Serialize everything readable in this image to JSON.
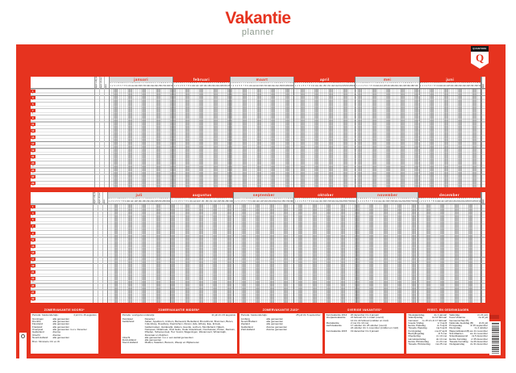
{
  "header": {
    "title": "Vakantie",
    "subtitle": "planner"
  },
  "brand": {
    "name": "QUANTORE",
    "monogram": "Q"
  },
  "colors": {
    "red": "#e6331f",
    "band_gray": "#d9d9d9",
    "weekend_gray": "#c6c6c6",
    "subtitle_green": "#8d998d"
  },
  "calendar": {
    "row_pairs_per_half": 15,
    "first_weekday_index": 3,
    "weekday_letters": [
      "m",
      "d",
      "w",
      "d",
      "v",
      "z",
      "z"
    ],
    "side_columns": [
      "dagen vorig jaar",
      "dagen dit jaar",
      "saldo"
    ],
    "total_column_label": "totaal",
    "halves": [
      {
        "months": [
          {
            "name": "januari",
            "days": 31,
            "band": "light"
          },
          {
            "name": "februari",
            "days": 28,
            "band": "red"
          },
          {
            "name": "maart",
            "days": 31,
            "band": "light"
          },
          {
            "name": "april",
            "days": 30,
            "band": "red"
          },
          {
            "name": "mei",
            "days": 31,
            "band": "light"
          },
          {
            "name": "juni",
            "days": 30,
            "band": "red"
          }
        ]
      },
      {
        "months": [
          {
            "name": "juli",
            "days": 31,
            "band": "light"
          },
          {
            "name": "augustus",
            "days": 31,
            "band": "red"
          },
          {
            "name": "september",
            "days": 30,
            "band": "light"
          },
          {
            "name": "oktober",
            "days": 31,
            "band": "red"
          },
          {
            "name": "november",
            "days": 30,
            "band": "light"
          },
          {
            "name": "december",
            "days": 31,
            "band": "red"
          }
        ]
      }
    ]
  },
  "panels": {
    "noord": {
      "title": "ZOMERVAKANTIE NOORD*",
      "period_label": "Periode:",
      "period_sub": "basisonderwijs:",
      "period_value": "4 juli t/m 16 augustus",
      "regions": [
        [
          "Groningen",
          "alle gemeenten"
        ],
        [
          "Drenthe",
          "alle gemeenten"
        ],
        [
          "Flevoland",
          "alle gemeenten"
        ],
        [
          "Friesland",
          "alle gemeenten"
        ],
        [
          "Overijssel",
          "alle gemeenten m.u.v. Deventer"
        ],
        [
          "Gelderland",
          "diverse"
        ],
        [
          "Utrecht",
          "diverse"
        ],
        [
          "Noord-Holland",
          "alle gemeenten"
        ]
      ],
      "footnote": "Bron: Ministerie OC en W"
    },
    "midden": {
      "title": "ZOMERVAKANTIE MIDDEN*",
      "period_label": "Periode:",
      "period_sub": "voortgezet onderwijs:",
      "period_value": "11 juli t/m 23 augustus",
      "regions": [
        [
          "Overijssel",
          "Deventer"
        ],
        [
          "Gelderland",
          "Aalten, Apeldoorn, Arnhem, Barneveld, Berkelland, Bronckhorst, Brummen, Buren, Culemborg, Doesburg, Doetinchem, Duiven, Ede, Elburg, Epe, Ermelo, Geldermalsen, Harderwijk, Hattem, Heerde, Lochem, Montferland, Nijkerk, Nunspeet, Oldebroek, Oost Gelre, Oude IJsselstreek, Overbetuwe, Putten, Renkum, Rheden, Scherpenzeel, Tiel, Voorst, Wageningen, Westervoort, Winterswijk, Zevenaar en Zutphen"
        ],
        [
          "Utrecht",
          "alle gemeenten m.u.v. een aantal gemeenten"
        ],
        [
          "Zuid-Holland",
          "alle gemeenten"
        ],
        [
          "Noord-Holland",
          "Muiden, Naarden, Bussum, Weesp en Wijdemeren"
        ]
      ]
    },
    "zuid": {
      "title": "ZOMERVAKANTIE ZUID*",
      "period_label": "Periode:",
      "period_sub": "basisonderwijs:",
      "period_value": "25 juli t/m 6 september",
      "regions": [
        [
          "Limburg",
          "alle gemeenten"
        ],
        [
          "Noord-Brabant",
          "alle gemeenten"
        ],
        [
          "Zeeland",
          "alle gemeenten"
        ],
        [
          "Gelderland",
          "diverse gemeenten"
        ],
        [
          "Zuid-Holland",
          "diverse gemeenten"
        ]
      ]
    },
    "overig": {
      "title": "OVERIGE VAKANTIES*",
      "rows": [
        [
          "Kerstvakantie 2014",
          "20 december t/m 4 januari"
        ],
        [
          "Voorjaarsvakantie",
          "21 februari t/m 1 maart (noord)"
        ],
        [
          "",
          "14 t/m 22 februari (midden en zuid)"
        ],
        [
          "Meivakantie",
          "2 mei t/m 10 mei"
        ],
        [
          "Herfstvakantie",
          "17 oktober t/m 25 oktober (noord)"
        ],
        [
          "",
          "24 oktober t/m 1 november (midden en zuid)"
        ],
        [
          "Kerstvakantie 2015",
          "19 december t/m 3 januari"
        ]
      ]
    },
    "feest": {
      "title": "FEEST- EN GEDENKDAGEN",
      "left": [
        [
          "Nieuwjaarsdag",
          "do 1 januari"
        ],
        [
          "Valentijnsdag",
          "za 14 februari"
        ],
        [
          "Carnaval",
          "zo 15 t/m di 17 februari"
        ],
        [
          "Goede Vrijdag",
          "vr 3 april"
        ],
        [
          "Eerste Paasdag",
          "zo 5 april"
        ],
        [
          "Tweede Paasdag",
          "ma 6 april"
        ],
        [
          "Koningsdag",
          "ma 27 april"
        ],
        [
          "Bevrijdingsdag",
          "di 5 mei"
        ],
        [
          "Moederdag",
          "zo 10 mei"
        ],
        [
          "Hemelvaartsdag",
          "do 14 mei"
        ],
        [
          "Eerste Pinksterdag",
          "zo 24 mei"
        ],
        [
          "Tweede Pinksterdag",
          "ma 25 mei"
        ]
      ],
      "right": [
        [
          "Vaderdag",
          "zo 21 juni"
        ],
        [
          "Feest Vlaamse Gemeenschap (B)",
          "za 11 juli"
        ],
        [
          "Nationale feestdag (B)",
          "di 21 juli"
        ],
        [
          "Prinsjesdag",
          "di 15 september"
        ],
        [
          "Dierendag",
          "zo 4 oktober"
        ],
        [
          "Wapenstilstand (B)",
          "wo 11 november"
        ],
        [
          "Sint-Maarten",
          "wo 11 november"
        ],
        [
          "Sinterklaasavond",
          "za 5 december"
        ],
        [
          "Eerste Kerstdag",
          "vr 25 december"
        ],
        [
          "Tweede Kerstdag",
          "za 26 december"
        ],
        [
          "Oudejaarsdag",
          "do 31 december"
        ]
      ]
    }
  }
}
